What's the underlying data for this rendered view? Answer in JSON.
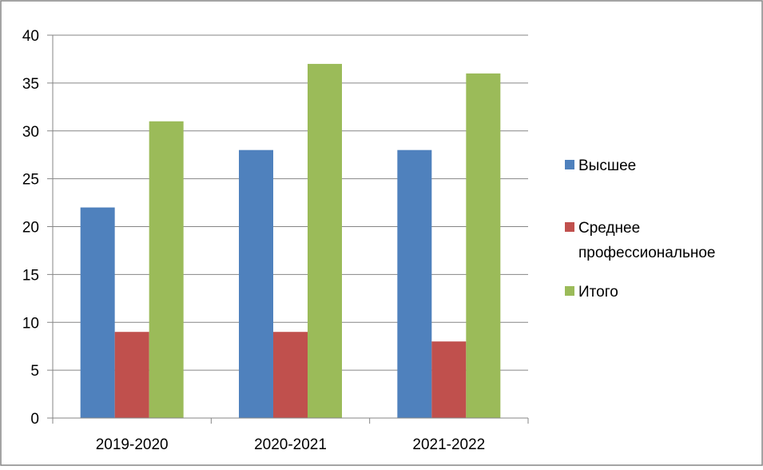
{
  "chart_data": {
    "type": "bar",
    "categories": [
      "2019-2020",
      "2020-2021",
      "2021-2022"
    ],
    "series": [
      {
        "name": "Высшее",
        "values": [
          22,
          28,
          28
        ],
        "color": "#4F81BD"
      },
      {
        "name": "Среднее профессиональное",
        "values": [
          9,
          9,
          8
        ],
        "color": "#C0504D"
      },
      {
        "name": "Итого",
        "values": [
          31,
          37,
          36
        ],
        "color": "#9BBB59"
      }
    ],
    "ylim": [
      0,
      40
    ],
    "yticks": [
      0,
      5,
      10,
      15,
      20,
      25,
      30,
      35,
      40
    ],
    "grid": true,
    "legend_position": "right",
    "legend": [
      {
        "lines": [
          "Высшее"
        ]
      },
      {
        "lines": [
          "Среднее",
          "профессиональное"
        ]
      },
      {
        "lines": [
          "Итого"
        ]
      }
    ]
  }
}
